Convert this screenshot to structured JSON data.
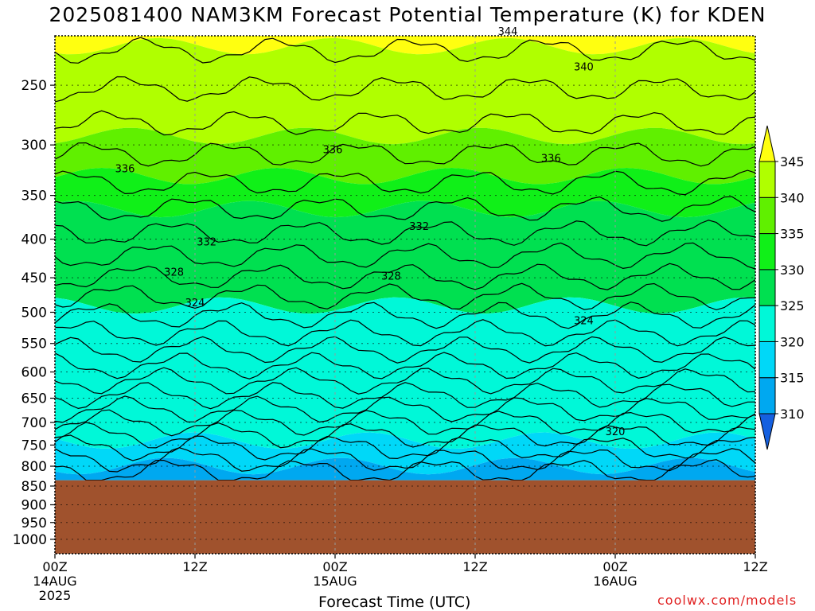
{
  "chart_data": {
    "type": "heatmap",
    "title": "2025081400 NAM3KM Forecast Potential Temperature (K) for KDEN",
    "xlabel": "Forecast Time (UTC)",
    "credit": "coolwx.com/models",
    "x_ticks": [
      {
        "hour": 0,
        "label": "00Z",
        "sub1": "14AUG",
        "sub2": "2025"
      },
      {
        "hour": 12,
        "label": "12Z",
        "sub1": "",
        "sub2": ""
      },
      {
        "hour": 24,
        "label": "00Z",
        "sub1": "15AUG",
        "sub2": ""
      },
      {
        "hour": 36,
        "label": "12Z",
        "sub1": "",
        "sub2": ""
      },
      {
        "hour": 48,
        "label": "00Z",
        "sub1": "16AUG",
        "sub2": ""
      },
      {
        "hour": 60,
        "label": "12Z",
        "sub1": "",
        "sub2": ""
      }
    ],
    "xlim": [
      0,
      60
    ],
    "y_ticks": [
      250,
      300,
      350,
      400,
      450,
      500,
      550,
      600,
      650,
      700,
      750,
      800,
      850,
      900,
      950,
      1000
    ],
    "ylabel": "",
    "terrain_pressure": 835,
    "colorbar": {
      "levels": [
        310,
        315,
        320,
        325,
        330,
        335,
        340,
        345
      ],
      "colors": [
        "#1560e0",
        "#00a8f0",
        "#00d8f8",
        "#00f8d8",
        "#00e050",
        "#10f018",
        "#60f000",
        "#b0ff00",
        "#ffff10"
      ]
    },
    "contour_labels": [
      {
        "value": "344",
        "hour": 38.8,
        "p": 212
      },
      {
        "value": "340",
        "hour": 45.3,
        "p": 236
      },
      {
        "value": "336",
        "hour": 6.0,
        "p": 322
      },
      {
        "value": "336",
        "hour": 23.8,
        "p": 304
      },
      {
        "value": "336",
        "hour": 42.5,
        "p": 312
      },
      {
        "value": "332",
        "hour": 13.0,
        "p": 403
      },
      {
        "value": "332",
        "hour": 31.2,
        "p": 384
      },
      {
        "value": "328",
        "hour": 10.2,
        "p": 442
      },
      {
        "value": "328",
        "hour": 28.8,
        "p": 447
      },
      {
        "value": "324",
        "hour": 12.0,
        "p": 485
      },
      {
        "value": "324",
        "hour": 45.3,
        "p": 512
      },
      {
        "value": "320",
        "hour": 48.0,
        "p": 719
      }
    ]
  },
  "colors": {
    "terrain": "#a0522d",
    "credit": "#e02020"
  }
}
